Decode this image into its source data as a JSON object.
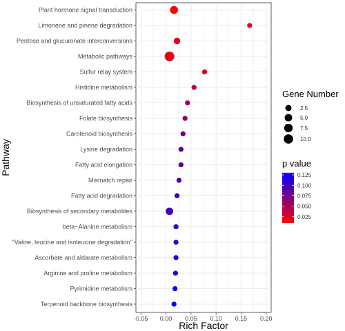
{
  "chart_data": {
    "type": "scatter",
    "xlabel": "Rich Factor",
    "ylabel": "Pathway",
    "xlim": [
      -0.06,
      0.21
    ],
    "xticks": [
      "-0.05",
      "0.00",
      "0.05",
      "0.10",
      "0.15",
      "0.20"
    ],
    "xtick_values": [
      -0.05,
      0.0,
      0.05,
      0.1,
      0.15,
      0.2
    ],
    "grid": true,
    "points": [
      {
        "pathway": "Plant hormone signal transduction",
        "rich_factor": 0.016,
        "gene_number": 6,
        "p_value": 0.01
      },
      {
        "pathway": "Limonene and pinene degradation",
        "rich_factor": 0.167,
        "gene_number": 1,
        "p_value": 0.015
      },
      {
        "pathway": "Pentose and glucuronate interconversions",
        "rich_factor": 0.022,
        "gene_number": 3,
        "p_value": 0.02
      },
      {
        "pathway": "Metabolic pathways",
        "rich_factor": 0.007,
        "gene_number": 11,
        "p_value": 0.02
      },
      {
        "pathway": "Sulfur relay system",
        "rich_factor": 0.077,
        "gene_number": 1,
        "p_value": 0.03
      },
      {
        "pathway": "Histidine metabolism",
        "rich_factor": 0.056,
        "gene_number": 1,
        "p_value": 0.045
      },
      {
        "pathway": "Biosynthesis of unsaturated fatty acids",
        "rich_factor": 0.043,
        "gene_number": 1,
        "p_value": 0.055
      },
      {
        "pathway": "Folate biosynthesis",
        "rich_factor": 0.038,
        "gene_number": 1,
        "p_value": 0.065
      },
      {
        "pathway": "Carotenoid biosynthesis",
        "rich_factor": 0.034,
        "gene_number": 1,
        "p_value": 0.075
      },
      {
        "pathway": "Lysine degradation",
        "rich_factor": 0.03,
        "gene_number": 1,
        "p_value": 0.085
      },
      {
        "pathway": "Fatty acid elongation",
        "rich_factor": 0.03,
        "gene_number": 1,
        "p_value": 0.085
      },
      {
        "pathway": "Mismatch repair",
        "rich_factor": 0.026,
        "gene_number": 1,
        "p_value": 0.095
      },
      {
        "pathway": "Fatty acid degradation",
        "rich_factor": 0.022,
        "gene_number": 1,
        "p_value": 0.1
      },
      {
        "pathway": "Biosynthesis of secondary metabolites",
        "rich_factor": 0.007,
        "gene_number": 5,
        "p_value": 0.1
      },
      {
        "pathway": "beta−Alanine metabolism",
        "rich_factor": 0.02,
        "gene_number": 1,
        "p_value": 0.105
      },
      {
        "pathway": "\"Valine, leucine and isoleucine degradation\"",
        "rich_factor": 0.02,
        "gene_number": 1,
        "p_value": 0.105
      },
      {
        "pathway": "Ascorbate and aldarate metabolism",
        "rich_factor": 0.02,
        "gene_number": 1,
        "p_value": 0.11
      },
      {
        "pathway": "Arginine and proline metabolism",
        "rich_factor": 0.019,
        "gene_number": 1,
        "p_value": 0.115
      },
      {
        "pathway": "Pyrimidine metabolism",
        "rich_factor": 0.018,
        "gene_number": 1,
        "p_value": 0.12
      },
      {
        "pathway": "Terpenoid backbone biosynthesis",
        "rich_factor": 0.016,
        "gene_number": 1,
        "p_value": 0.13
      }
    ],
    "size_legend": {
      "title": "Gene Number",
      "labels": [
        "2.5",
        "5.0",
        "7.5",
        "10.0"
      ],
      "values": [
        2.5,
        5.0,
        7.5,
        10.0
      ]
    },
    "color_legend": {
      "title": "p value",
      "labels": [
        "0.125",
        "0.100",
        "0.075",
        "0.050",
        "0.025"
      ],
      "values": [
        0.125,
        0.1,
        0.075,
        0.05,
        0.025
      ],
      "range": [
        0.01,
        0.13
      ],
      "low_color": "#ff0000",
      "high_color": "#0000ff"
    },
    "panel_background": "#ffffff",
    "grid_color": "#ebebeb"
  }
}
